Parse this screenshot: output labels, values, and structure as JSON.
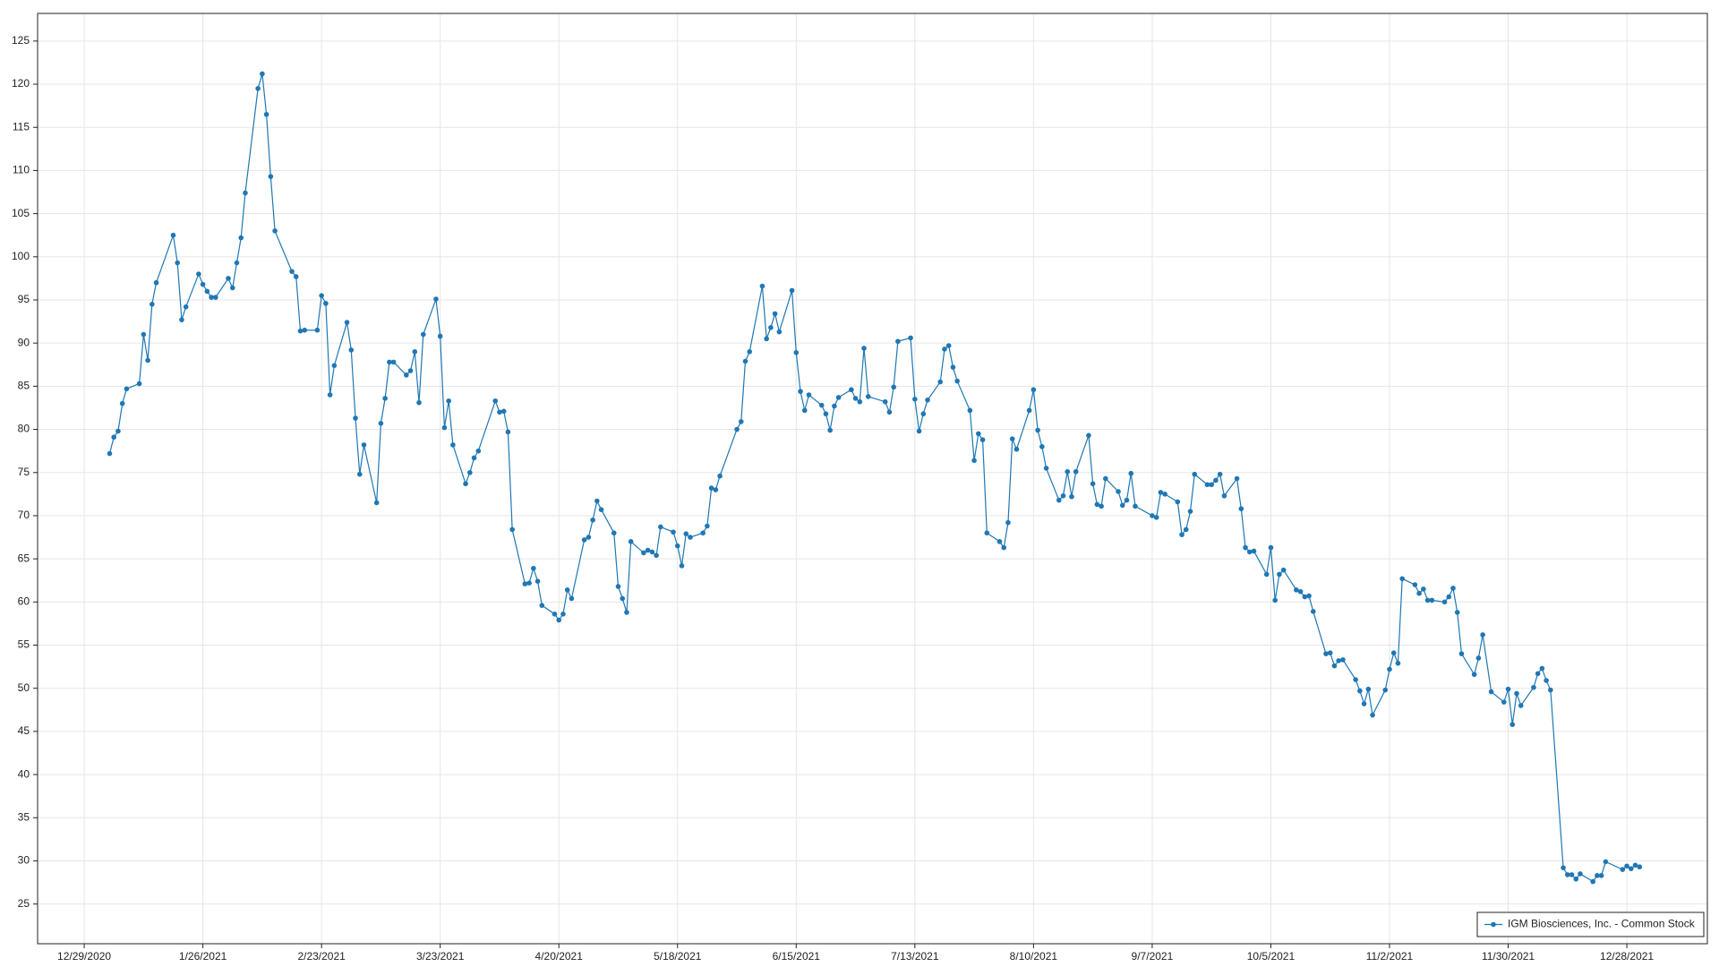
{
  "chart_data": {
    "type": "line",
    "x": [
      "2021-01-04",
      "2021-01-05",
      "2021-01-06",
      "2021-01-07",
      "2021-01-08",
      "2021-01-11",
      "2021-01-12",
      "2021-01-13",
      "2021-01-14",
      "2021-01-15",
      "2021-01-19",
      "2021-01-20",
      "2021-01-21",
      "2021-01-22",
      "2021-01-25",
      "2021-01-26",
      "2021-01-27",
      "2021-01-28",
      "2021-01-29",
      "2021-02-01",
      "2021-02-02",
      "2021-02-03",
      "2021-02-04",
      "2021-02-05",
      "2021-02-08",
      "2021-02-09",
      "2021-02-10",
      "2021-02-11",
      "2021-02-12",
      "2021-02-16",
      "2021-02-17",
      "2021-02-18",
      "2021-02-19",
      "2021-02-22",
      "2021-02-23",
      "2021-02-24",
      "2021-02-25",
      "2021-02-26",
      "2021-03-01",
      "2021-03-02",
      "2021-03-03",
      "2021-03-04",
      "2021-03-05",
      "2021-03-08",
      "2021-03-09",
      "2021-03-10",
      "2021-03-11",
      "2021-03-12",
      "2021-03-15",
      "2021-03-16",
      "2021-03-17",
      "2021-03-18",
      "2021-03-19",
      "2021-03-22",
      "2021-03-23",
      "2021-03-24",
      "2021-03-25",
      "2021-03-26",
      "2021-03-29",
      "2021-03-30",
      "2021-03-31",
      "2021-04-01",
      "2021-04-05",
      "2021-04-06",
      "2021-04-07",
      "2021-04-08",
      "2021-04-09",
      "2021-04-12",
      "2021-04-13",
      "2021-04-14",
      "2021-04-15",
      "2021-04-16",
      "2021-04-19",
      "2021-04-20",
      "2021-04-21",
      "2021-04-22",
      "2021-04-23",
      "2021-04-26",
      "2021-04-27",
      "2021-04-28",
      "2021-04-29",
      "2021-04-30",
      "2021-05-03",
      "2021-05-04",
      "2021-05-05",
      "2021-05-06",
      "2021-05-07",
      "2021-05-10",
      "2021-05-11",
      "2021-05-12",
      "2021-05-13",
      "2021-05-14",
      "2021-05-17",
      "2021-05-18",
      "2021-05-19",
      "2021-05-20",
      "2021-05-21",
      "2021-05-24",
      "2021-05-25",
      "2021-05-26",
      "2021-05-27",
      "2021-05-28",
      "2021-06-01",
      "2021-06-02",
      "2021-06-03",
      "2021-06-04",
      "2021-06-07",
      "2021-06-08",
      "2021-06-09",
      "2021-06-10",
      "2021-06-11",
      "2021-06-14",
      "2021-06-15",
      "2021-06-16",
      "2021-06-17",
      "2021-06-18",
      "2021-06-21",
      "2021-06-22",
      "2021-06-23",
      "2021-06-24",
      "2021-06-25",
      "2021-06-28",
      "2021-06-29",
      "2021-06-30",
      "2021-07-01",
      "2021-07-02",
      "2021-07-06",
      "2021-07-07",
      "2021-07-08",
      "2021-07-09",
      "2021-07-12",
      "2021-07-13",
      "2021-07-14",
      "2021-07-15",
      "2021-07-16",
      "2021-07-19",
      "2021-07-20",
      "2021-07-21",
      "2021-07-22",
      "2021-07-23",
      "2021-07-26",
      "2021-07-27",
      "2021-07-28",
      "2021-07-29",
      "2021-07-30",
      "2021-08-02",
      "2021-08-03",
      "2021-08-04",
      "2021-08-05",
      "2021-08-06",
      "2021-08-09",
      "2021-08-10",
      "2021-08-11",
      "2021-08-12",
      "2021-08-13",
      "2021-08-16",
      "2021-08-17",
      "2021-08-18",
      "2021-08-19",
      "2021-08-20",
      "2021-08-23",
      "2021-08-24",
      "2021-08-25",
      "2021-08-26",
      "2021-08-27",
      "2021-08-30",
      "2021-08-31",
      "2021-09-01",
      "2021-09-02",
      "2021-09-03",
      "2021-09-07",
      "2021-09-08",
      "2021-09-09",
      "2021-09-10",
      "2021-09-13",
      "2021-09-14",
      "2021-09-15",
      "2021-09-16",
      "2021-09-17",
      "2021-09-20",
      "2021-09-21",
      "2021-09-22",
      "2021-09-23",
      "2021-09-24",
      "2021-09-27",
      "2021-09-28",
      "2021-09-29",
      "2021-09-30",
      "2021-10-01",
      "2021-10-04",
      "2021-10-05",
      "2021-10-06",
      "2021-10-07",
      "2021-10-08",
      "2021-10-11",
      "2021-10-12",
      "2021-10-13",
      "2021-10-14",
      "2021-10-15",
      "2021-10-18",
      "2021-10-19",
      "2021-10-20",
      "2021-10-21",
      "2021-10-22",
      "2021-10-25",
      "2021-10-26",
      "2021-10-27",
      "2021-10-28",
      "2021-10-29",
      "2021-11-01",
      "2021-11-02",
      "2021-11-03",
      "2021-11-04",
      "2021-11-05",
      "2021-11-08",
      "2021-11-09",
      "2021-11-10",
      "2021-11-11",
      "2021-11-12",
      "2021-11-15",
      "2021-11-16",
      "2021-11-17",
      "2021-11-18",
      "2021-11-19",
      "2021-11-22",
      "2021-11-23",
      "2021-11-24",
      "2021-11-26",
      "2021-11-29",
      "2021-11-30",
      "2021-12-01",
      "2021-12-02",
      "2021-12-03",
      "2021-12-06",
      "2021-12-07",
      "2021-12-08",
      "2021-12-09",
      "2021-12-10",
      "2021-12-13",
      "2021-12-14",
      "2021-12-15",
      "2021-12-16",
      "2021-12-17",
      "2021-12-20",
      "2021-12-21",
      "2021-12-22",
      "2021-12-23",
      "2021-12-27",
      "2021-12-28",
      "2021-12-29",
      "2021-12-30",
      "2021-12-31"
    ],
    "series": [
      {
        "name": "IGM Biosciences, Inc. - Common Stock",
        "color": "#1f77b4",
        "values": [
          77.2,
          79.1,
          79.8,
          83.0,
          84.7,
          85.3,
          91.0,
          88.0,
          94.5,
          97.0,
          102.5,
          99.3,
          92.7,
          94.2,
          98.0,
          96.8,
          96.0,
          95.3,
          95.3,
          97.5,
          96.4,
          99.3,
          102.2,
          107.4,
          119.5,
          121.2,
          116.5,
          109.3,
          103.0,
          98.3,
          97.7,
          91.4,
          91.5,
          91.5,
          95.5,
          94.6,
          84.0,
          87.4,
          92.4,
          89.2,
          81.3,
          74.8,
          78.2,
          71.5,
          80.7,
          83.6,
          87.8,
          87.8,
          86.3,
          86.8,
          89.0,
          83.1,
          91.0,
          95.1,
          90.8,
          80.2,
          83.3,
          78.2,
          73.7,
          75.0,
          76.7,
          77.5,
          83.3,
          82.0,
          82.1,
          79.7,
          68.4,
          62.1,
          62.2,
          63.9,
          62.4,
          59.6,
          58.6,
          57.9,
          58.6,
          61.4,
          60.4,
          67.2,
          67.5,
          69.5,
          71.7,
          70.7,
          68.0,
          61.8,
          60.4,
          58.8,
          67.0,
          65.7,
          66.0,
          65.8,
          65.4,
          68.7,
          68.1,
          66.5,
          64.2,
          67.9,
          67.5,
          68.0,
          68.8,
          73.2,
          73.0,
          74.6,
          80.0,
          80.9,
          87.9,
          89.0,
          96.6,
          90.5,
          91.8,
          93.4,
          91.3,
          96.1,
          88.9,
          84.4,
          82.2,
          84.0,
          82.8,
          81.8,
          79.9,
          82.7,
          83.7,
          84.6,
          83.6,
          83.2,
          89.4,
          83.8,
          83.2,
          82.0,
          84.9,
          90.2,
          90.6,
          83.5,
          79.8,
          81.8,
          83.4,
          85.5,
          89.3,
          89.7,
          87.2,
          85.6,
          82.2,
          76.4,
          79.5,
          78.8,
          68.0,
          67.0,
          66.3,
          69.2,
          78.9,
          77.7,
          82.2,
          84.6,
          79.9,
          78.0,
          75.5,
          71.8,
          72.3,
          75.1,
          72.2,
          75.1,
          79.3,
          73.7,
          71.3,
          71.1,
          74.3,
          72.8,
          71.2,
          71.8,
          74.9,
          71.1,
          70.0,
          69.8,
          72.7,
          72.5,
          71.6,
          67.8,
          68.4,
          70.5,
          74.8,
          73.6,
          73.6,
          74.1,
          74.8,
          72.3,
          74.3,
          70.8,
          66.3,
          65.8,
          65.9,
          63.2,
          66.3,
          60.2,
          63.2,
          63.7,
          61.4,
          61.2,
          60.6,
          60.7,
          58.9,
          54.0,
          54.1,
          52.6,
          53.2,
          53.3,
          51.0,
          49.7,
          48.2,
          49.9,
          46.9,
          49.8,
          52.2,
          54.1,
          52.9,
          62.7,
          62.0,
          61.0,
          61.5,
          60.2,
          60.2,
          60.0,
          60.6,
          61.6,
          58.8,
          54.0,
          51.6,
          53.5,
          56.2,
          49.6,
          48.4,
          49.9,
          45.8,
          49.4,
          48.0,
          50.1,
          51.7,
          52.3,
          50.9,
          49.8,
          29.2,
          28.4,
          28.4,
          27.9,
          28.5,
          27.6,
          28.3,
          28.3,
          29.9,
          29.0,
          29.4,
          29.1,
          29.5,
          29.3
        ]
      }
    ],
    "xlim": [
      "2020-12-18",
      "2022-01-16"
    ],
    "xticks": [
      {
        "value": "2020-12-29",
        "label": "12/29/2020"
      },
      {
        "value": "2021-01-26",
        "label": "1/26/2021"
      },
      {
        "value": "2021-02-23",
        "label": "2/23/2021"
      },
      {
        "value": "2021-03-23",
        "label": "3/23/2021"
      },
      {
        "value": "2021-04-20",
        "label": "4/20/2021"
      },
      {
        "value": "2021-05-18",
        "label": "5/18/2021"
      },
      {
        "value": "2021-06-15",
        "label": "6/15/2021"
      },
      {
        "value": "2021-07-13",
        "label": "7/13/2021"
      },
      {
        "value": "2021-08-10",
        "label": "8/10/2021"
      },
      {
        "value": "2021-09-07",
        "label": "9/7/2021"
      },
      {
        "value": "2021-10-05",
        "label": "10/5/2021"
      },
      {
        "value": "2021-11-02",
        "label": "11/2/2021"
      },
      {
        "value": "2021-11-30",
        "label": "11/30/2021"
      },
      {
        "value": "2021-12-28",
        "label": "12/28/2021"
      }
    ],
    "ylim": [
      20.4,
      128.2
    ],
    "yticks": [
      25,
      30,
      35,
      40,
      45,
      50,
      55,
      60,
      65,
      70,
      75,
      80,
      85,
      90,
      95,
      100,
      105,
      110,
      115,
      120,
      125
    ],
    "grid": true,
    "legend": "lower-right"
  }
}
